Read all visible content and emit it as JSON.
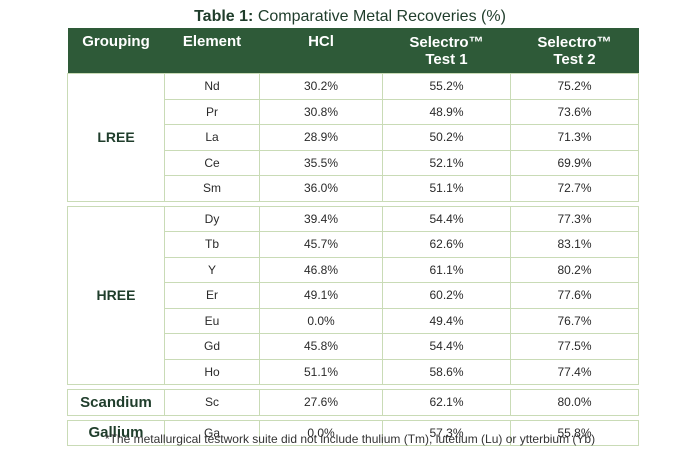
{
  "title": {
    "label": "Table 1:",
    "text": " Comparative Metal Recoveries (%)"
  },
  "columns": {
    "grouping": "Grouping",
    "element": "Element",
    "hcl": "HCl",
    "test1_line1": "Selectro™",
    "test1_line2": "Test 1",
    "test2_line1": "Selectro™",
    "test2_line2": "Test 2"
  },
  "groups": [
    {
      "name": "LREE",
      "rows": [
        {
          "element": "Nd",
          "hcl": "30.2%",
          "test1": "55.2%",
          "test2": "75.2%"
        },
        {
          "element": "Pr",
          "hcl": "30.8%",
          "test1": "48.9%",
          "test2": "73.6%"
        },
        {
          "element": "La",
          "hcl": "28.9%",
          "test1": "50.2%",
          "test2": "71.3%"
        },
        {
          "element": "Ce",
          "hcl": "35.5%",
          "test1": "52.1%",
          "test2": "69.9%"
        },
        {
          "element": "Sm",
          "hcl": "36.0%",
          "test1": "51.1%",
          "test2": "72.7%"
        }
      ]
    },
    {
      "name": "HREE",
      "rows": [
        {
          "element": "Dy",
          "hcl": "39.4%",
          "test1": "54.4%",
          "test2": "77.3%"
        },
        {
          "element": "Tb",
          "hcl": "45.7%",
          "test1": "62.6%",
          "test2": "83.1%"
        },
        {
          "element": "Y",
          "hcl": "46.8%",
          "test1": "61.1%",
          "test2": "80.2%"
        },
        {
          "element": "Er",
          "hcl": "49.1%",
          "test1": "60.2%",
          "test2": "77.6%"
        },
        {
          "element": "Eu",
          "hcl": "0.0%",
          "test1": "49.4%",
          "test2": "76.7%"
        },
        {
          "element": "Gd",
          "hcl": "45.8%",
          "test1": "54.4%",
          "test2": "77.5%"
        },
        {
          "element": "Ho",
          "hcl": "51.1%",
          "test1": "58.6%",
          "test2": "77.4%"
        }
      ]
    },
    {
      "name": "Scandium",
      "rows": [
        {
          "element": "Sc",
          "hcl": "27.6%",
          "test1": "62.1%",
          "test2": "80.0%"
        }
      ]
    },
    {
      "name": "Gallium",
      "rows": [
        {
          "element": "Ga",
          "hcl": "0.0%",
          "test1": "57.3%",
          "test2": "55.8%"
        }
      ]
    }
  ],
  "footnote": "*The metallurgical testwork suite did not include thulium (Tm), lutetium (Lu) or ytterbium (Yb)",
  "colors": {
    "header_bg": "#2e5a38",
    "header_text": "#ffffff",
    "grid": "#c9dbb6",
    "group_text": "#1f3d2b"
  }
}
